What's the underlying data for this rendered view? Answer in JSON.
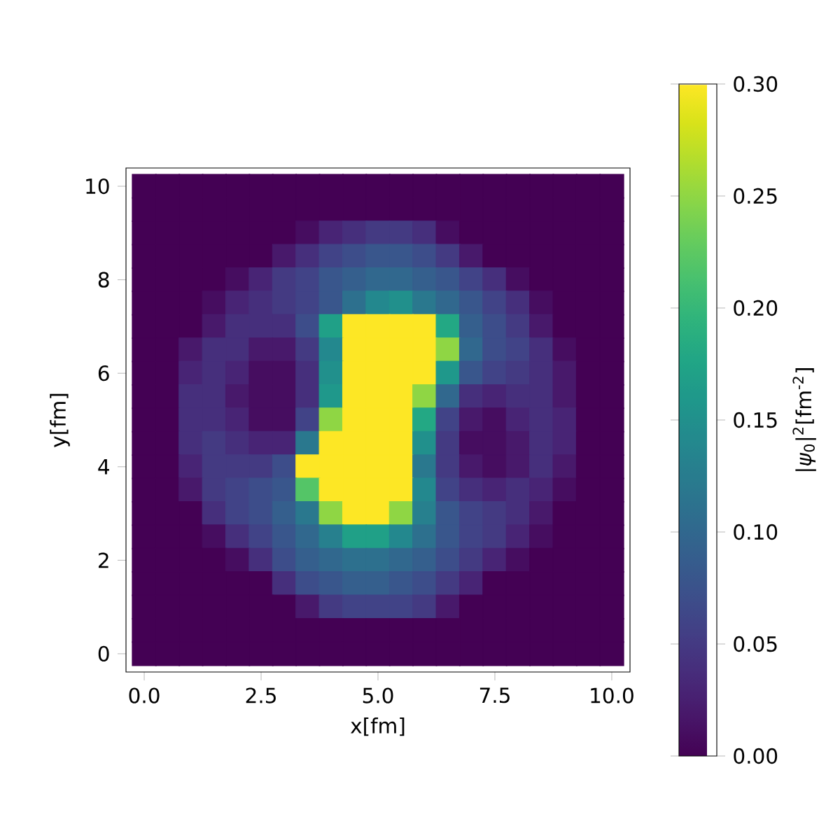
{
  "chart_data": {
    "type": "heatmap",
    "xlabel": "x[fm]",
    "ylabel": "y[fm]",
    "clabel": "|*ψ*$_{0}$|$^{2}$[fm$^{-2}$]",
    "categories": [
      "0.0",
      null,
      null,
      null,
      null,
      "2.5",
      null,
      null,
      null,
      null,
      "5.0",
      null,
      null,
      null,
      null,
      "7.5",
      null,
      null,
      null,
      null,
      "10.0"
    ],
    "y_categories": [
      "10",
      null,
      null,
      null,
      "8",
      null,
      null,
      null,
      "6",
      null,
      null,
      null,
      "4",
      null,
      null,
      null,
      "2",
      null,
      null,
      null,
      "0"
    ],
    "clim": [
      0,
      0.3
    ],
    "cticks": [
      {
        "value": 0,
        "label": "0.00"
      },
      {
        "value": 0.05,
        "label": "0.05"
      },
      {
        "value": 0.1,
        "label": "0.10"
      },
      {
        "value": 0.15,
        "label": "0.15"
      },
      {
        "value": 0.2,
        "label": "0.20"
      },
      {
        "value": 0.25,
        "label": "0.25"
      },
      {
        "value": 0.3,
        "label": "0.30"
      }
    ],
    "cells": [
      [
        0,
        0,
        0,
        0,
        0,
        0,
        0,
        0,
        0,
        0,
        0,
        0,
        0,
        0,
        0,
        0,
        0,
        0,
        0,
        0,
        0
      ],
      [
        0,
        0,
        0,
        0,
        0,
        0,
        0,
        0,
        0,
        0,
        0,
        0,
        0,
        0,
        0,
        0,
        0,
        0,
        0,
        0,
        0
      ],
      [
        0,
        0,
        0,
        0,
        0,
        0,
        0,
        0.01,
        0.03,
        0.04,
        0.05,
        0.05,
        0.04,
        0.01,
        0,
        0,
        0,
        0,
        0,
        0,
        0
      ],
      [
        0,
        0,
        0,
        0,
        0,
        0,
        0.02,
        0.04,
        0.06,
        0.07,
        0.08,
        0.08,
        0.07,
        0.05,
        0.02,
        0,
        0,
        0,
        0,
        0,
        0
      ],
      [
        0,
        0,
        0,
        0,
        0.01,
        0.03,
        0.05,
        0.06,
        0.08,
        0.09,
        0.1,
        0.1,
        0.09,
        0.08,
        0.06,
        0.04,
        0.01,
        0,
        0,
        0,
        0
      ],
      [
        0,
        0,
        0,
        0.01,
        0.03,
        0.04,
        0.05,
        0.06,
        0.08,
        0.11,
        0.14,
        0.15,
        0.12,
        0.1,
        0.08,
        0.06,
        0.04,
        0.01,
        0,
        0,
        0
      ],
      [
        0,
        0,
        0,
        0.02,
        0.04,
        0.04,
        0.04,
        0.07,
        0.17,
        0.3,
        0.3,
        0.3,
        0.3,
        0.18,
        0.09,
        0.07,
        0.05,
        0.02,
        0,
        0,
        0
      ],
      [
        0,
        0,
        0.02,
        0.04,
        0.04,
        0.02,
        0.02,
        0.05,
        0.14,
        0.3,
        0.3,
        0.3,
        0.3,
        0.25,
        0.1,
        0.07,
        0.06,
        0.04,
        0.01,
        0,
        0
      ],
      [
        0,
        0,
        0.03,
        0.04,
        0.03,
        0.01,
        0.01,
        0.04,
        0.15,
        0.3,
        0.3,
        0.3,
        0.3,
        0.16,
        0.08,
        0.06,
        0.05,
        0.04,
        0.02,
        0,
        0
      ],
      [
        0,
        0,
        0.04,
        0.04,
        0.02,
        0.01,
        0.01,
        0.04,
        0.16,
        0.3,
        0.3,
        0.3,
        0.25,
        0.1,
        0.04,
        0.03,
        0.04,
        0.04,
        0.02,
        0,
        0
      ],
      [
        0,
        0,
        0.04,
        0.04,
        0.03,
        0.01,
        0.01,
        0.06,
        0.25,
        0.3,
        0.3,
        0.3,
        0.18,
        0.06,
        0.02,
        0.01,
        0.03,
        0.04,
        0.03,
        0,
        0
      ],
      [
        0,
        0,
        0.04,
        0.05,
        0.04,
        0.03,
        0.03,
        0.12,
        0.3,
        0.3,
        0.3,
        0.3,
        0.15,
        0.05,
        0.01,
        0.01,
        0.02,
        0.04,
        0.03,
        0,
        0
      ],
      [
        0,
        0,
        0.03,
        0.05,
        0.05,
        0.05,
        0.07,
        0.3,
        0.3,
        0.3,
        0.3,
        0.3,
        0.12,
        0.05,
        0.02,
        0.01,
        0.02,
        0.04,
        0.02,
        0,
        0
      ],
      [
        0,
        0,
        0.02,
        0.05,
        0.06,
        0.07,
        0.08,
        0.22,
        0.3,
        0.3,
        0.3,
        0.3,
        0.14,
        0.06,
        0.04,
        0.03,
        0.04,
        0.03,
        0.01,
        0,
        0
      ],
      [
        0,
        0,
        0,
        0.04,
        0.06,
        0.07,
        0.09,
        0.12,
        0.25,
        0.3,
        0.3,
        0.25,
        0.13,
        0.08,
        0.06,
        0.05,
        0.04,
        0.02,
        0,
        0,
        0
      ],
      [
        0,
        0,
        0,
        0.01,
        0.04,
        0.06,
        0.08,
        0.1,
        0.13,
        0.17,
        0.17,
        0.14,
        0.11,
        0.08,
        0.06,
        0.05,
        0.03,
        0.01,
        0,
        0,
        0
      ],
      [
        0,
        0,
        0,
        0,
        0.01,
        0.04,
        0.07,
        0.09,
        0.1,
        0.11,
        0.11,
        0.1,
        0.09,
        0.07,
        0.05,
        0.03,
        0.01,
        0,
        0,
        0,
        0
      ],
      [
        0,
        0,
        0,
        0,
        0,
        0,
        0.04,
        0.07,
        0.08,
        0.09,
        0.09,
        0.08,
        0.07,
        0.05,
        0.03,
        0,
        0,
        0,
        0,
        0,
        0
      ],
      [
        0,
        0,
        0,
        0,
        0,
        0,
        0,
        0.02,
        0.05,
        0.06,
        0.06,
        0.06,
        0.05,
        0.02,
        0,
        0,
        0,
        0,
        0,
        0,
        0
      ],
      [
        0,
        0,
        0,
        0,
        0,
        0,
        0,
        0,
        0,
        0,
        0,
        0,
        0,
        0,
        0,
        0,
        0,
        0,
        0,
        0,
        0
      ],
      [
        0,
        0,
        0,
        0,
        0,
        0,
        0,
        0,
        0,
        0,
        0,
        0,
        0,
        0,
        0,
        0,
        0,
        0,
        0,
        0,
        0
      ]
    ]
  }
}
